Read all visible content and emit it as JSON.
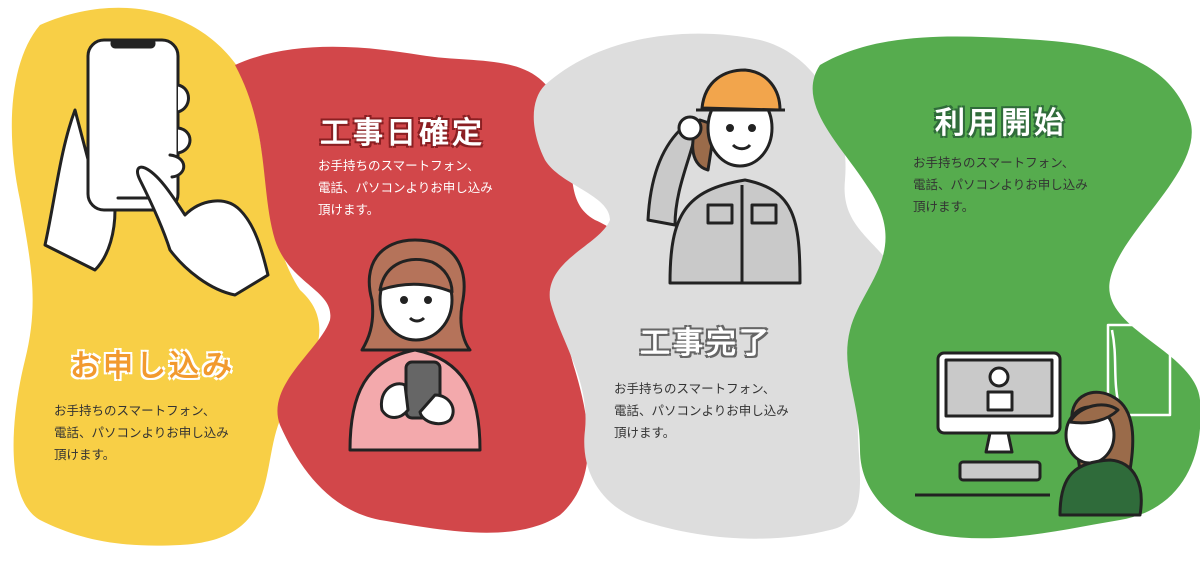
{
  "colors": {
    "yellow": "#F8CF46",
    "red": "#D2474A",
    "gray": "#DDDDDD",
    "green": "#56AC4E"
  },
  "steps": [
    {
      "title": "お申し込み",
      "description": "お手持ちのスマートフォン、\n電話、パソコンよりお申し込み\n頂けます。",
      "illustration": "hand-smartphone-icon"
    },
    {
      "title": "工事日確定",
      "description": "お手持ちのスマートフォン、\n電話、パソコンよりお申し込み\n頂けます。",
      "illustration": "woman-phone-icon"
    },
    {
      "title": "工事完了",
      "description": "お手持ちのスマートフォン、\n電話、パソコンよりお申し込み\n頂けます。",
      "illustration": "worker-helmet-icon"
    },
    {
      "title": "利用開始",
      "description": "お手持ちのスマートフォン、\n電話、パソコンよりお申し込み\n頂けます。",
      "illustration": "woman-computer-icon"
    }
  ]
}
